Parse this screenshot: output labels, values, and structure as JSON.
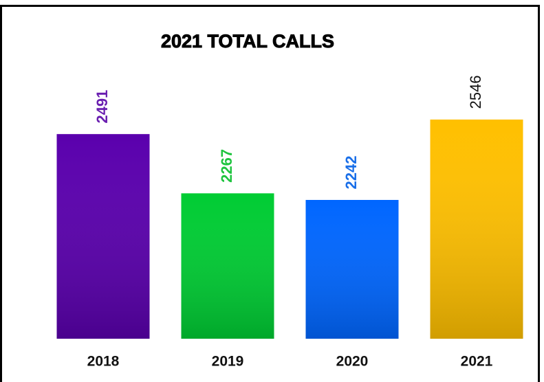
{
  "chart_data": {
    "type": "bar",
    "title": "2021 TOTAL CALLS",
    "categories": [
      "2018",
      "2019",
      "2020",
      "2021"
    ],
    "values": [
      2491,
      2267,
      2242,
      2546
    ],
    "colors": [
      "#5a00ad",
      "#00cc33",
      "#0066ff",
      "#ffc000"
    ],
    "value_label_colors": [
      "#6a1fb0",
      "#1fc43f",
      "#1a6fe8",
      "#111111"
    ]
  }
}
